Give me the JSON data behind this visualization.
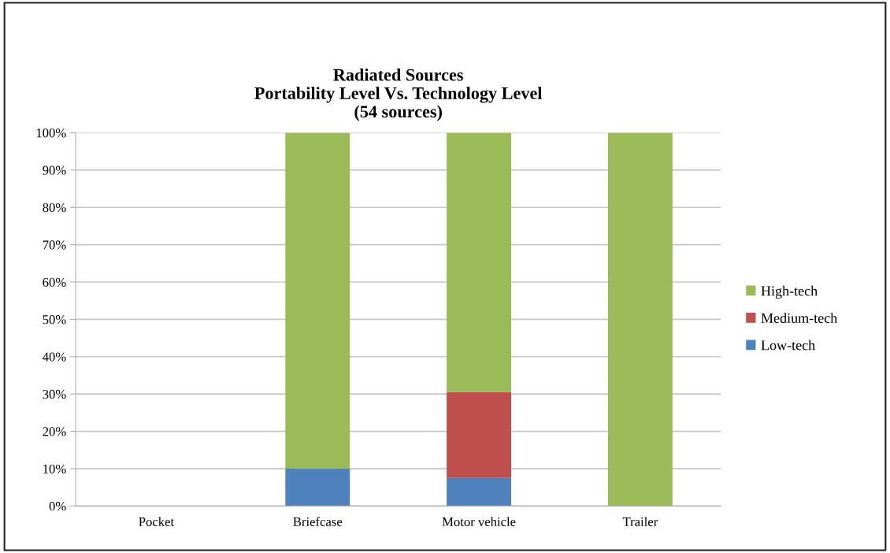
{
  "chart_data": {
    "type": "bar",
    "title": "Radiated Sources\nPortability Level Vs. Technology Level\n(54 sources)",
    "categories": [
      "Pocket",
      "Briefcase",
      "Motor vehicle",
      "Trailer"
    ],
    "stacked": true,
    "series": [
      {
        "name": "Low-tech",
        "color": "#4f81bd",
        "values": [
          null,
          10,
          7.5,
          null
        ]
      },
      {
        "name": "Medium-tech",
        "color": "#c0504d",
        "values": [
          null,
          null,
          23,
          null
        ]
      },
      {
        "name": "High-tech",
        "color": "#9bbb59",
        "values": [
          null,
          90,
          69.5,
          100
        ]
      }
    ],
    "ylim": [
      0,
      100
    ],
    "yticks": [
      {
        "value": 0,
        "label": "0%"
      },
      {
        "value": 10,
        "label": "10%"
      },
      {
        "value": 20,
        "label": "20%"
      },
      {
        "value": 30,
        "label": "30%"
      },
      {
        "value": 40,
        "label": "40%"
      },
      {
        "value": 50,
        "label": "50%"
      },
      {
        "value": 60,
        "label": "60%"
      },
      {
        "value": 70,
        "label": "70%"
      },
      {
        "value": 80,
        "label": "80%"
      },
      {
        "value": 90,
        "label": "90%"
      },
      {
        "value": 100,
        "label": "100%"
      }
    ],
    "grid": "y",
    "legend": "right"
  }
}
